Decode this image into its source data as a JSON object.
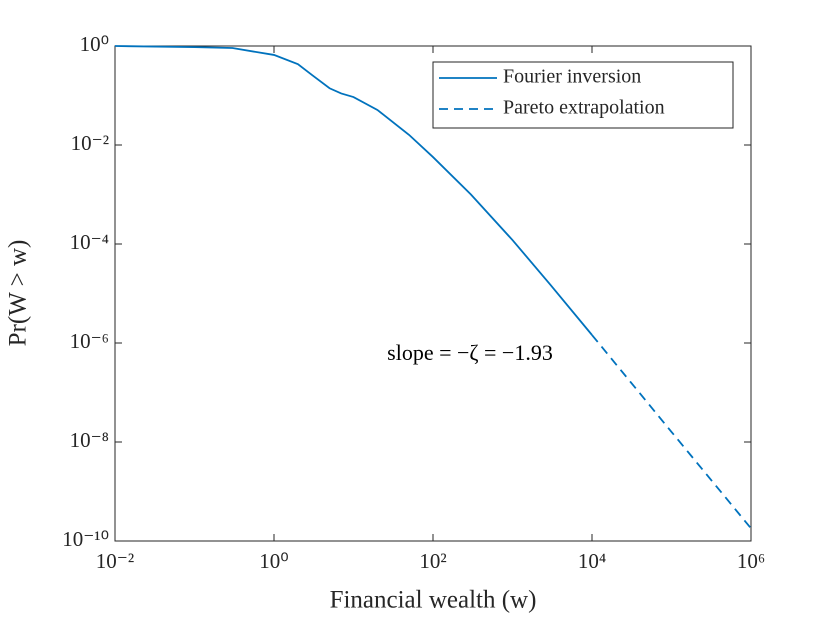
{
  "chart_data": {
    "type": "line",
    "xlabel": "Financial wealth (w)",
    "ylabel": "Pr(W > w)",
    "annotation": "slope = −ζ = −1.93",
    "xscale": "log",
    "yscale": "log",
    "grid": false,
    "legend": "upper right",
    "xlim": [
      0.01,
      1000000
    ],
    "ylim": [
      1e-10,
      1
    ],
    "xticks": [
      {
        "value": 0.01,
        "label": "10⁻²"
      },
      {
        "value": 1,
        "label": "10⁰"
      },
      {
        "value": 100,
        "label": "10²"
      },
      {
        "value": 10000,
        "label": "10⁴"
      },
      {
        "value": 1000000,
        "label": "10⁶"
      }
    ],
    "yticks": [
      {
        "value": 1e-10,
        "label": "10⁻¹⁰"
      },
      {
        "value": 1e-08,
        "label": "10⁻⁸"
      },
      {
        "value": 1e-06,
        "label": "10⁻⁶"
      },
      {
        "value": 0.0001,
        "label": "10⁻⁴"
      },
      {
        "value": 0.01,
        "label": "10⁻²"
      },
      {
        "value": 1,
        "label": "10⁰"
      }
    ],
    "x": [
      0.01,
      0.1,
      0.3,
      1,
      2,
      3,
      5,
      7,
      10,
      20,
      50,
      100,
      300,
      1000,
      3000,
      10000,
      100000,
      1000000
    ],
    "series": [
      {
        "name": "Fourier inversion",
        "color": "#0072bd",
        "linestyle": "solid",
        "values": [
          1,
          0.95,
          0.91,
          0.66,
          0.43,
          0.26,
          0.14,
          0.11,
          0.093,
          0.051,
          0.016,
          0.0057,
          0.001,
          0.00012,
          1.5e-05,
          1.45e-06,
          null,
          null
        ]
      },
      {
        "name": "Pareto extrapolation",
        "color": "#0072bd",
        "linestyle": "dashed",
        "values": [
          null,
          null,
          null,
          null,
          null,
          null,
          null,
          null,
          null,
          null,
          null,
          null,
          null,
          null,
          null,
          1.45e-06,
          1.6e-08,
          1.8e-10
        ]
      }
    ]
  }
}
